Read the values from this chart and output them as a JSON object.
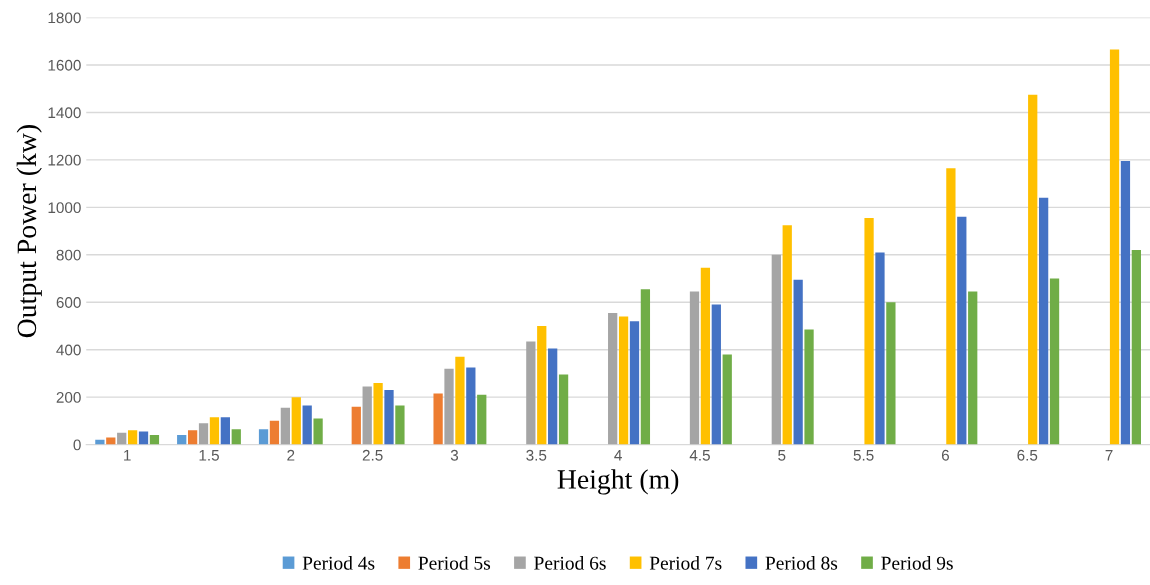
{
  "chart_data": {
    "type": "bar",
    "xlabel": "Height (m)",
    "ylabel": "Output Power (kw)",
    "categories": [
      "1",
      "1.5",
      "2",
      "2.5",
      "3",
      "3.5",
      "4",
      "4.5",
      "5",
      "5.5",
      "6",
      "6.5",
      "7"
    ],
    "series": [
      {
        "name": "Period 4s",
        "color": "#5b9bd5",
        "values": [
          20,
          40,
          65,
          null,
          null,
          null,
          null,
          null,
          null,
          null,
          null,
          null,
          null
        ]
      },
      {
        "name": "Period 5s",
        "color": "#ed7d31",
        "values": [
          30,
          60,
          100,
          160,
          215,
          null,
          null,
          null,
          null,
          null,
          null,
          null,
          null
        ]
      },
      {
        "name": "Period 6s",
        "color": "#a5a5a5",
        "values": [
          50,
          90,
          155,
          245,
          320,
          435,
          555,
          645,
          800,
          null,
          null,
          null,
          null
        ]
      },
      {
        "name": "Period 7s",
        "color": "#ffc000",
        "values": [
          60,
          115,
          200,
          260,
          370,
          500,
          540,
          745,
          925,
          955,
          1165,
          1475,
          1665
        ]
      },
      {
        "name": "Period 8s",
        "color": "#4472c4",
        "values": [
          55,
          115,
          165,
          230,
          325,
          405,
          520,
          590,
          695,
          810,
          960,
          1040,
          1195
        ]
      },
      {
        "name": "Period 9s",
        "color": "#70ad47",
        "values": [
          40,
          65,
          110,
          165,
          210,
          295,
          655,
          380,
          485,
          600,
          645,
          700,
          820
        ]
      }
    ],
    "ylim": [
      0,
      1800
    ],
    "yticks": [
      0,
      200,
      400,
      600,
      800,
      1000,
      1200,
      1400,
      1600,
      1800
    ],
    "grid": "y",
    "legend": "bottom"
  }
}
